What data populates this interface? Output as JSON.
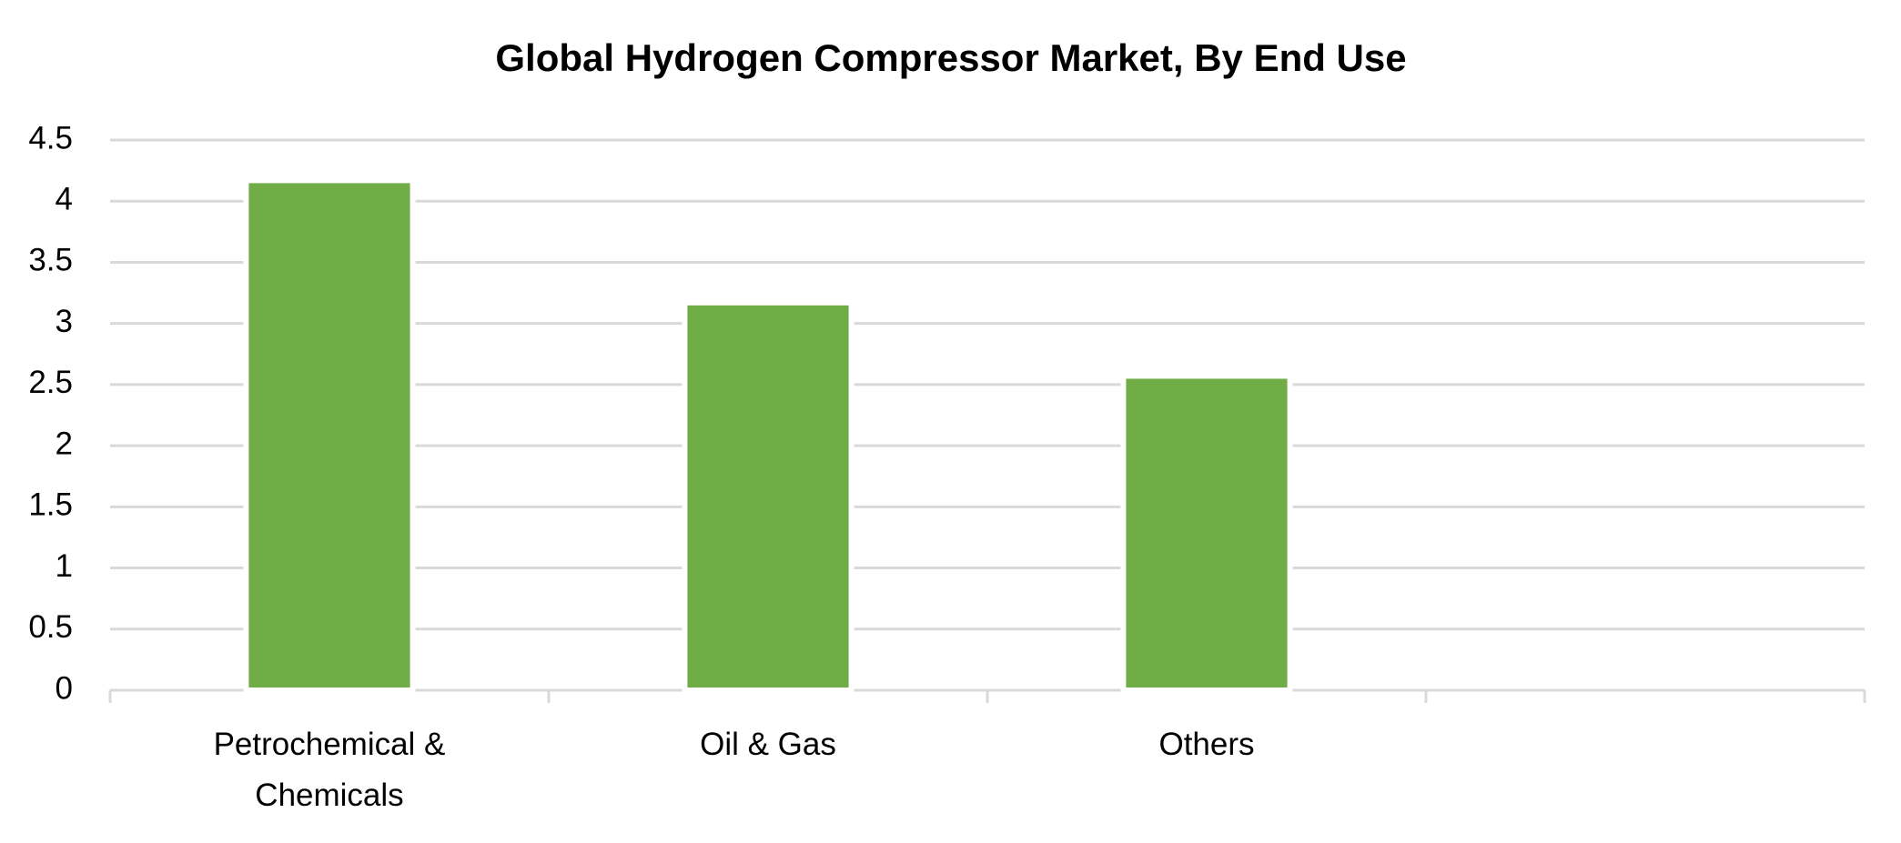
{
  "chart_data": {
    "type": "bar",
    "title": "Global Hydrogen Compressor Market, By End Use",
    "categories": [
      "Petrochemical & Chemicals",
      "Oil & Gas",
      "Others",
      null
    ],
    "values": [
      4.17,
      3.17,
      2.57,
      null
    ],
    "color": "#70ad47",
    "ylim": [
      0,
      4.5
    ],
    "yticks": [
      0,
      0.5,
      1,
      1.5,
      2,
      2.5,
      3,
      3.5,
      4,
      4.5
    ],
    "grid": true
  }
}
